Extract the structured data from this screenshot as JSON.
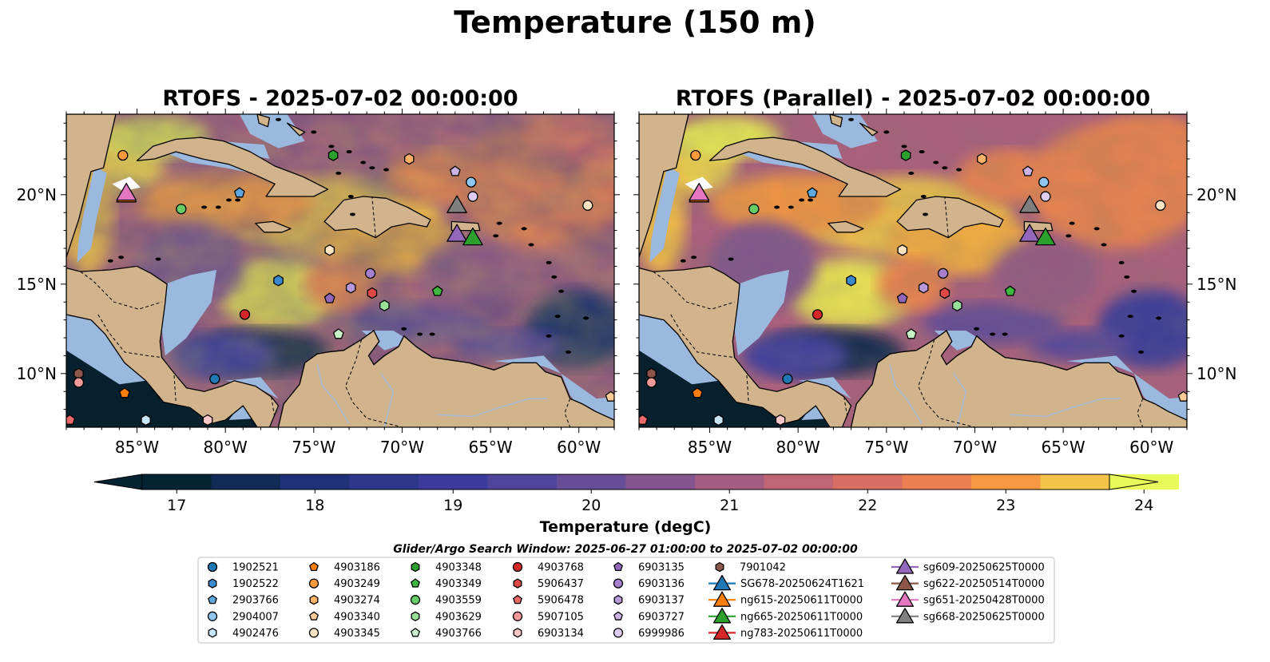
{
  "figure": {
    "title": "Temperature (150 m)",
    "panels": [
      {
        "title": "RTOFS - 2025-07-02 00:00:00",
        "variant": "rtofs"
      },
      {
        "title": "RTOFS (Parallel) - 2025-07-02 00:00:00",
        "variant": "parallel"
      }
    ],
    "lon_ticks": [
      "85°W",
      "80°W",
      "75°W",
      "70°W",
      "65°W",
      "60°W"
    ],
    "lon_tick_values": [
      -85,
      -80,
      -75,
      -70,
      -65,
      -60
    ],
    "lat_ticks": [
      "20°N",
      "15°N",
      "10°N"
    ],
    "lat_tick_values": [
      20,
      15,
      10
    ],
    "extent": {
      "lon": [
        -89,
        -58
      ],
      "lat": [
        7,
        24.5
      ]
    },
    "colors": {
      "land": "#d2b48c",
      "shallow": "#9bb8df",
      "deep_cold": "#06202e"
    }
  },
  "colorbar": {
    "label": "Temperature (degC)",
    "ticks": [
      "17",
      "18",
      "19",
      "20",
      "21",
      "22",
      "23",
      "24"
    ],
    "range": [
      16.75,
      24.5
    ],
    "step": 0.5,
    "extend": "both",
    "colormap": "thermal"
  },
  "legend": {
    "title": "Glider/Argo Search Window: 2025-06-27 01:00:00 to 2025-07-02 00:00:00",
    "columns": [
      [
        {
          "label": "1902521",
          "marker": "circle",
          "color": "#1f77b4"
        },
        {
          "label": "1902522",
          "marker": "hexagon",
          "color": "#3a8ad0"
        },
        {
          "label": "2903766",
          "marker": "pentagon",
          "color": "#5ea8e0"
        },
        {
          "label": "2904007",
          "marker": "circle",
          "color": "#8fc6ef"
        },
        {
          "label": "4902476",
          "marker": "hexagon",
          "color": "#c8e4f8"
        }
      ],
      [
        {
          "label": "4903186",
          "marker": "pentagon",
          "color": "#ff7f0e"
        },
        {
          "label": "4903249",
          "marker": "circle",
          "color": "#ff9a3c"
        },
        {
          "label": "4903274",
          "marker": "hexagon",
          "color": "#ffb366"
        },
        {
          "label": "4903340",
          "marker": "pentagon",
          "color": "#ffcc99"
        },
        {
          "label": "4903345",
          "marker": "circle",
          "color": "#ffe3c2"
        }
      ],
      [
        {
          "label": "4903348",
          "marker": "hexagon",
          "color": "#2ca02c"
        },
        {
          "label": "4903349",
          "marker": "pentagon",
          "color": "#3fb83f"
        },
        {
          "label": "4903559",
          "marker": "circle",
          "color": "#66cc66"
        },
        {
          "label": "4903629",
          "marker": "hexagon",
          "color": "#99e099"
        },
        {
          "label": "4903766",
          "marker": "pentagon",
          "color": "#c8f2c8"
        }
      ],
      [
        {
          "label": "4903768",
          "marker": "circle",
          "color": "#d62728"
        },
        {
          "label": "5906437",
          "marker": "hexagon",
          "color": "#e04848"
        },
        {
          "label": "5906478",
          "marker": "pentagon",
          "color": "#ea6a6a"
        },
        {
          "label": "5907105",
          "marker": "circle",
          "color": "#f29a9a"
        },
        {
          "label": "6903134",
          "marker": "hexagon",
          "color": "#f8c8c8"
        }
      ],
      [
        {
          "label": "6903135",
          "marker": "pentagon",
          "color": "#9467bd"
        },
        {
          "label": "6903136",
          "marker": "circle",
          "color": "#a680cc"
        },
        {
          "label": "6903137",
          "marker": "hexagon",
          "color": "#b899da"
        },
        {
          "label": "6903727",
          "marker": "pentagon",
          "color": "#cbb3e6"
        },
        {
          "label": "6999986",
          "marker": "circle",
          "color": "#ddcdf2"
        }
      ],
      [
        {
          "label": "7901042",
          "marker": "hexagon",
          "color": "#8c564b"
        },
        {
          "label": "SG678-20250624T1621",
          "marker": "triangle",
          "color": "#1f77b4"
        },
        {
          "label": "ng615-20250611T0000",
          "marker": "triangle",
          "color": "#ff7f0e"
        },
        {
          "label": "ng665-20250611T0000",
          "marker": "triangle",
          "color": "#2ca02c"
        },
        {
          "label": "ng783-20250611T0000",
          "marker": "triangle",
          "color": "#d62728"
        }
      ],
      [
        {
          "label": "sg609-20250625T0000",
          "marker": "triangle",
          "color": "#9467bd"
        },
        {
          "label": "sg622-20250514T0000",
          "marker": "triangle",
          "color": "#8c564b"
        },
        {
          "label": "sg651-20250428T0000",
          "marker": "triangle",
          "color": "#e377c2"
        },
        {
          "label": "sg668-20250625T0000",
          "marker": "triangle",
          "color": "#7f7f7f"
        }
      ]
    ]
  },
  "markers": [
    {
      "lon": -85.8,
      "lat": 22.2,
      "marker": "circle",
      "color": "#ff9a3c"
    },
    {
      "lon": -82.5,
      "lat": 19.2,
      "marker": "circle",
      "color": "#66cc66"
    },
    {
      "lon": -79.2,
      "lat": 20.1,
      "marker": "pentagon",
      "color": "#5ea8e0"
    },
    {
      "lon": -73.9,
      "lat": 22.2,
      "marker": "hexagon",
      "color": "#2ca02c"
    },
    {
      "lon": -69.6,
      "lat": 22.0,
      "marker": "hexagon",
      "color": "#ffb366"
    },
    {
      "lon": -67.0,
      "lat": 21.3,
      "marker": "pentagon",
      "color": "#cbb3e6"
    },
    {
      "lon": -66.1,
      "lat": 20.7,
      "marker": "circle",
      "color": "#8fc6ef"
    },
    {
      "lon": -66.0,
      "lat": 19.9,
      "marker": "circle",
      "color": "#ddcdf2"
    },
    {
      "lon": -59.5,
      "lat": 19.4,
      "marker": "circle",
      "color": "#ffe3c2"
    },
    {
      "lon": -74.1,
      "lat": 16.9,
      "marker": "hexagon",
      "color": "#ffe3c2"
    },
    {
      "lon": -77.0,
      "lat": 15.2,
      "marker": "hexagon",
      "color": "#3a8ad0"
    },
    {
      "lon": -72.9,
      "lat": 14.8,
      "marker": "hexagon",
      "color": "#b899da"
    },
    {
      "lon": -71.8,
      "lat": 15.6,
      "marker": "circle",
      "color": "#a680cc"
    },
    {
      "lon": -71.7,
      "lat": 14.5,
      "marker": "hexagon",
      "color": "#e04848"
    },
    {
      "lon": -74.1,
      "lat": 14.2,
      "marker": "pentagon",
      "color": "#9467bd"
    },
    {
      "lon": -71.0,
      "lat": 13.8,
      "marker": "hexagon",
      "color": "#99e099"
    },
    {
      "lon": -68.0,
      "lat": 14.6,
      "marker": "pentagon",
      "color": "#3fb83f"
    },
    {
      "lon": -78.9,
      "lat": 13.3,
      "marker": "circle",
      "color": "#d62728"
    },
    {
      "lon": -73.6,
      "lat": 12.2,
      "marker": "pentagon",
      "color": "#c8f2c8"
    },
    {
      "lon": -80.6,
      "lat": 9.7,
      "marker": "circle",
      "color": "#1f77b4"
    },
    {
      "lon": -88.3,
      "lat": 10.0,
      "marker": "hexagon",
      "color": "#8c564b"
    },
    {
      "lon": -88.3,
      "lat": 9.5,
      "marker": "circle",
      "color": "#f29a9a"
    },
    {
      "lon": -85.7,
      "lat": 8.9,
      "marker": "pentagon",
      "color": "#ff7f0e"
    },
    {
      "lon": -88.8,
      "lat": 7.4,
      "marker": "pentagon",
      "color": "#ea6a6a"
    },
    {
      "lon": -84.5,
      "lat": 7.4,
      "marker": "hexagon",
      "color": "#c8e4f8"
    },
    {
      "lon": -81.0,
      "lat": 7.4,
      "marker": "hexagon",
      "color": "#f8c8c8"
    },
    {
      "lon": -58.2,
      "lat": 8.7,
      "marker": "pentagon",
      "color": "#ffcc99"
    }
  ],
  "gliders": [
    {
      "lon": -85.6,
      "lat": 20.0,
      "color": "#ff7f0e"
    },
    {
      "lon": -85.6,
      "lat": 20.1,
      "color": "#e377c2"
    },
    {
      "lon": -66.9,
      "lat": 19.4,
      "color": "#7f7f7f"
    },
    {
      "lon": -66.9,
      "lat": 17.8,
      "color": "#9467bd"
    },
    {
      "lon": -66.0,
      "lat": 17.6,
      "color": "#2ca02c"
    }
  ]
}
